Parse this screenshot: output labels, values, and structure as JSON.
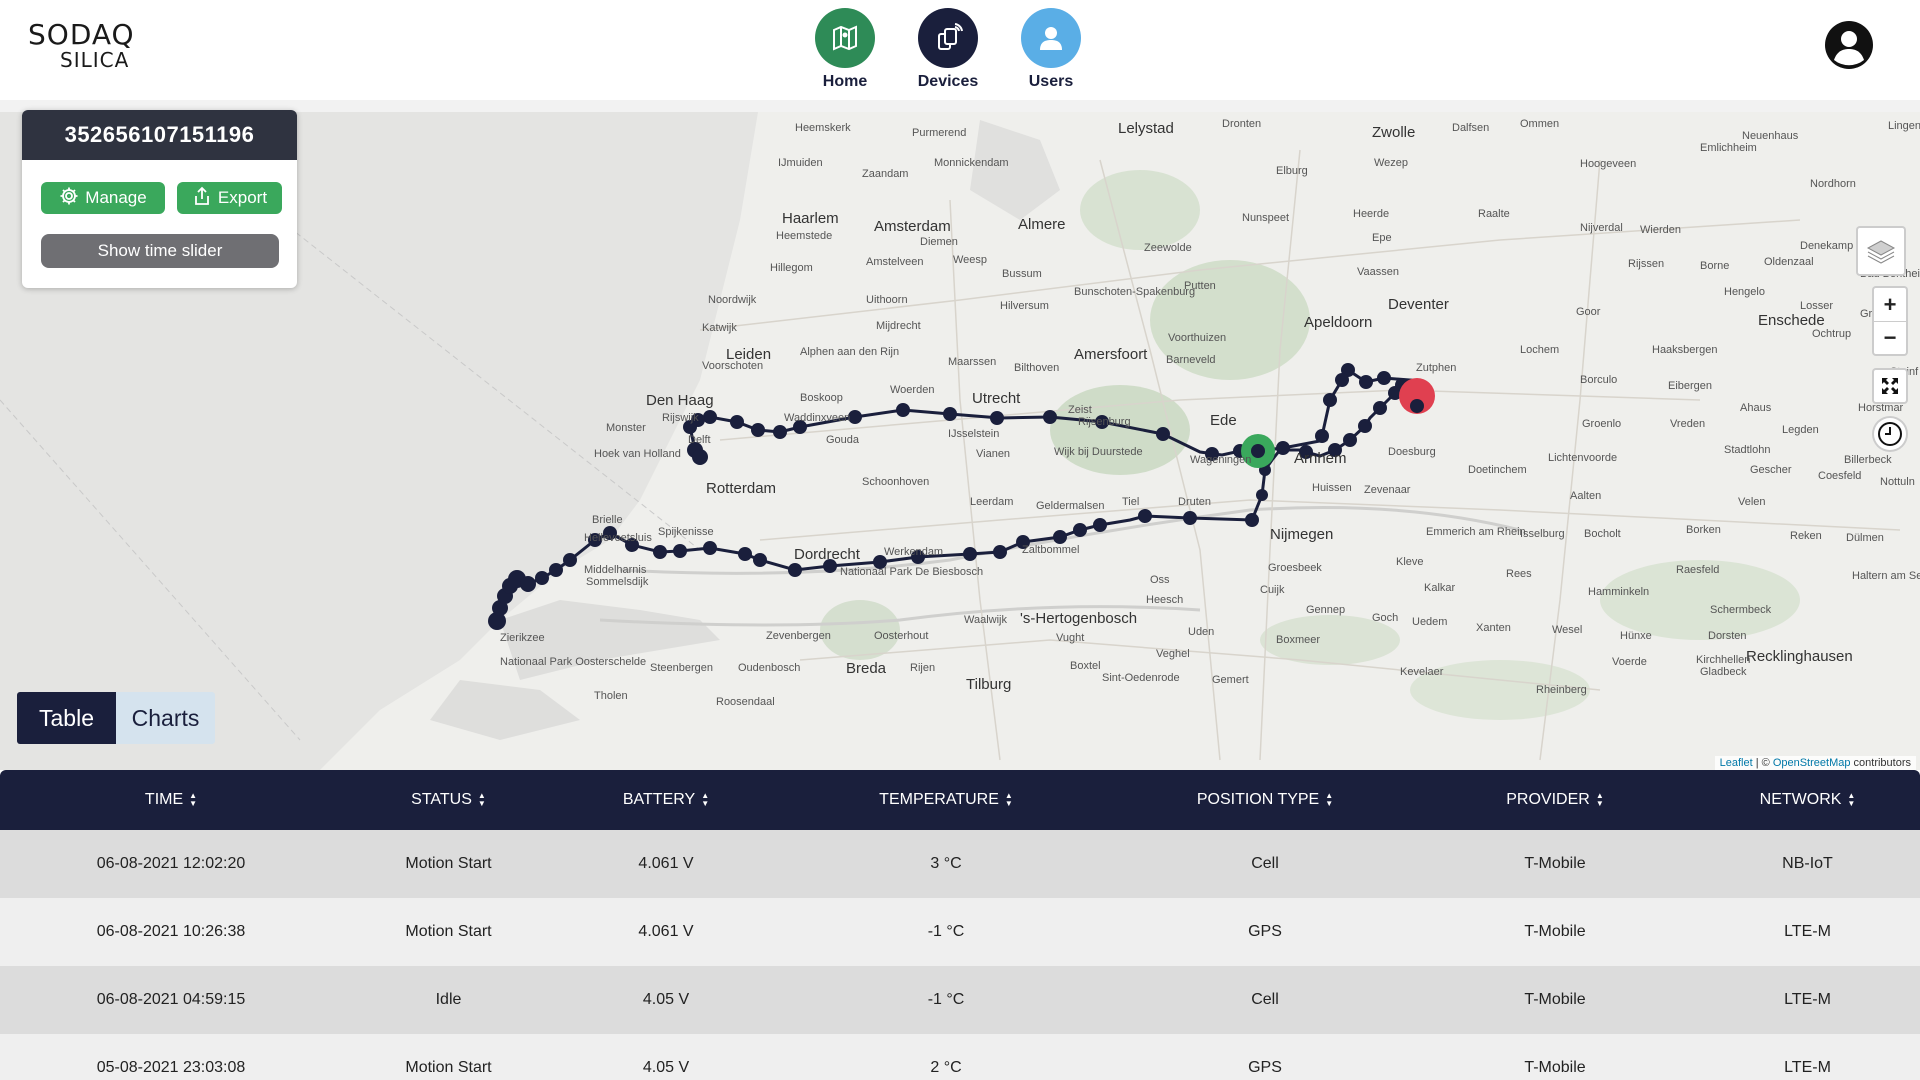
{
  "app": {
    "logo_line1": "SODAQ",
    "logo_line2": "SILICA"
  },
  "nav": {
    "home": "Home",
    "devices": "Devices",
    "users": "Users"
  },
  "device": {
    "id": "352656107151196",
    "manage": "Manage",
    "export": "Export",
    "time_slider": "Show time slider"
  },
  "map": {
    "places": [
      "Heemskerk",
      "Purmerend",
      "Lelystad",
      "Dronten",
      "Zwolle",
      "Dalfsen",
      "Ommen",
      "Neuenhaus",
      "IJmuiden",
      "Monnickendam",
      "Elburg",
      "Wezep",
      "Hoogeveen",
      "Zaandam",
      "Haarlem",
      "Amsterdam",
      "Almere",
      "Nunspeet",
      "Heerde",
      "Raalte",
      "Nijverdal",
      "Wierden",
      "Nordhorn",
      "Heemstede",
      "Diemen",
      "Epe",
      "Rijssen",
      "Borne",
      "Oldenzaal",
      "Hillegom",
      "Weesp",
      "Zeewolde",
      "Vaassen",
      "Hengelo",
      "Amstelveen",
      "Bussum",
      "Hilversum",
      "Putten",
      "Deventer",
      "Enschede",
      "Noordwijk",
      "Uithoorn",
      "Bunschoten-Spakenburg",
      "Apeldoorn",
      "Goor",
      "Katwijk",
      "Mijdrecht",
      "Voorthuizen",
      "Leiden",
      "Alphen aan den Rijn",
      "Amersfoort",
      "Barneveld",
      "Lochem",
      "Haaksbergen",
      "Voorschoten",
      "Maarssen",
      "Bilthoven",
      "Zutphen",
      "Borculo",
      "Eibergen",
      "Den Haag",
      "Boskoop",
      "Woerden",
      "Utrecht",
      "Rijswijk",
      "Waddinxveen",
      "Zeist",
      "Rijsenburg",
      "Ede",
      "Doesburg",
      "Groenlo",
      "Vreden",
      "Monster",
      "Gouda",
      "IJsselstein",
      "Delft",
      "Vianen",
      "Wijk bij Duurstede",
      "Wageningen",
      "Arnhem",
      "Lichtenvoorde",
      "Hoek van Holland",
      "Schoonhoven",
      "Huissen",
      "Zevenaar",
      "Doetinchem",
      "Rotterdam",
      "Leerdam",
      "Geldermalsen",
      "Tiel",
      "Druten",
      "Aalten",
      "Brielle",
      "Hellevoetsluis",
      "Spijkenisse",
      "Nijmegen",
      "Emmerich am Rhein",
      "Isselburg",
      "Bocholt",
      "Dordrecht",
      "Werkendam",
      "Zaltbommel",
      "Oss",
      "Kleve",
      "Middelharnis",
      "Sommelsdijk",
      "Nationaal Park De Biesbosch",
      "Groesbeek",
      "Kalkar",
      "Rees",
      "Hamminkeln",
      "Heesch",
      "Cuijk",
      "Waalwijk",
      "'s-Hertogenbosch",
      "Gennep",
      "Zierikzee",
      "Zevenbergen",
      "Oosterhout",
      "Vught",
      "Uden",
      "Goch",
      "Uedem",
      "Xanten",
      "Wesel",
      "Hünxe",
      "Dorsten",
      "Boxmeer",
      "Breda",
      "Rijen",
      "Boxtel",
      "Veghel",
      "Steenbergen",
      "Oudenbosch",
      "Tilburg",
      "Sint-Oedenrode",
      "Gemert",
      "Kevelaer",
      "Voerde",
      "Recklinghausen",
      "Tholen",
      "Roosendaal",
      "Rheinberg",
      "Kirchhellen",
      "Gladbeck",
      "Nationaal Park Oosterschelde",
      "Ochtrup",
      "Horstmar",
      "Ahaus",
      "Legden",
      "Stadtlohn",
      "Billerbeck",
      "Gescher",
      "Coesfeld",
      "Velen",
      "Reken",
      "Dülmen",
      "Haltern am See",
      "Borken",
      "Raesfeld",
      "Schermbeck",
      "Losser",
      "Gronau",
      "Denekamp",
      "Bad Bentheim",
      "Steinf",
      "Nottuln",
      "Lingen",
      "Emlichheim"
    ],
    "attribution_leaflet": "Leaflet",
    "attribution_sep": " | © ",
    "attribution_osm": "OpenStreetMap",
    "attribution_tail": " contributors",
    "zoom_in": "+",
    "zoom_out": "−"
  },
  "tabs": {
    "table": "Table",
    "charts": "Charts"
  },
  "table": {
    "headers": [
      "TIME",
      "STATUS",
      "BATTERY",
      "TEMPERATURE",
      "POSITION TYPE",
      "PROVIDER",
      "NETWORK"
    ],
    "rows": [
      [
        "06-08-2021 12:02:20",
        "Motion Start",
        "4.061 V",
        "3 °C",
        "Cell",
        "T-Mobile",
        "NB-IoT"
      ],
      [
        "06-08-2021 10:26:38",
        "Motion Start",
        "4.061 V",
        "-1 °C",
        "GPS",
        "T-Mobile",
        "LTE-M"
      ],
      [
        "06-08-2021 04:59:15",
        "Idle",
        "4.05 V",
        "-1 °C",
        "Cell",
        "T-Mobile",
        "LTE-M"
      ],
      [
        "05-08-2021 23:03:08",
        "Motion Start",
        "4.05 V",
        "2 °C",
        "GPS",
        "T-Mobile",
        "LTE-M"
      ]
    ]
  }
}
